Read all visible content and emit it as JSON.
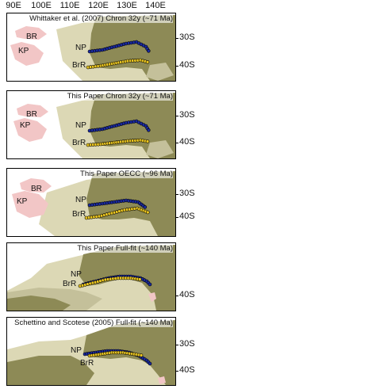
{
  "axis": {
    "lon_labels": [
      "90E",
      "100E",
      "110E",
      "120E",
      "130E",
      "140E"
    ],
    "lat_labels": [
      "30S",
      "40S"
    ]
  },
  "colors": {
    "ocean": "#ffffff",
    "australia": "#8d8a56",
    "antarctica": "#dcd8b5",
    "shelf": "#c4c09a",
    "plateau": "#f2c6c6",
    "np_points": "#1a2aa0",
    "brr_points": "#e8c421"
  },
  "panels": [
    {
      "title": "Whittaker et al. (2007) Chron 32y (~71 Ma)",
      "labels": {
        "br": "BR",
        "kp": "KP",
        "np": "NP",
        "brr": "BrR"
      }
    },
    {
      "title": "This Paper Chron 32y (~71 Ma)",
      "labels": {
        "br": "BR",
        "kp": "KP",
        "np": "NP",
        "brr": "BrR"
      }
    },
    {
      "title": "This Paper OECC (~96 Ma)",
      "labels": {
        "br": "BR",
        "kp": "KP",
        "np": "NP",
        "brr": "BrR"
      }
    },
    {
      "title": "This Paper Full-fit (~140 Ma)",
      "labels": {
        "np": "NP",
        "brr": "BrR"
      }
    },
    {
      "title": "Schettino and Scotese (2005) Full-fit (~140 Ma)",
      "labels": {
        "np": "NP",
        "brr": "BrR"
      }
    }
  ]
}
